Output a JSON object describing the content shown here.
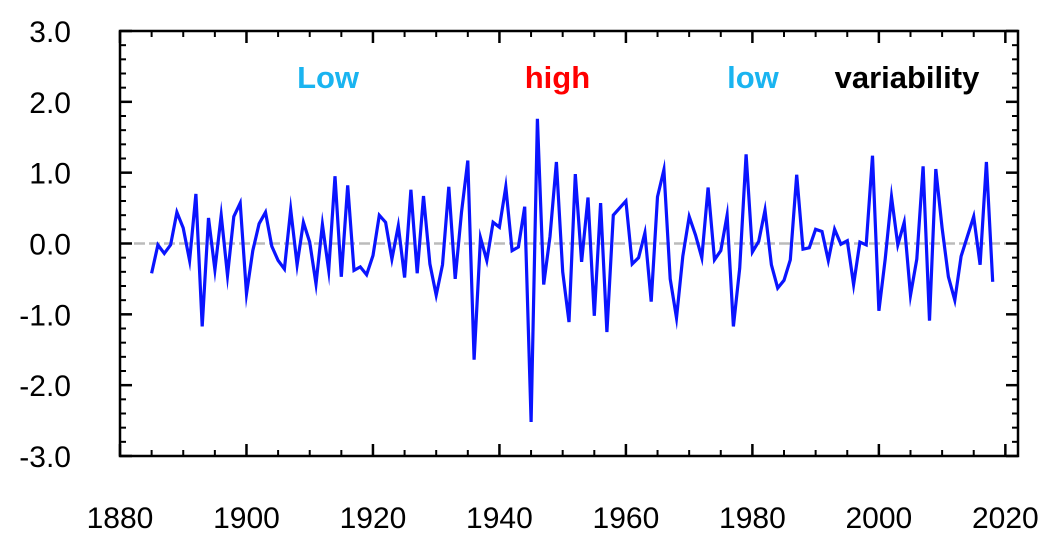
{
  "chart_data": {
    "type": "line",
    "title": "",
    "xlabel": "",
    "ylabel": "",
    "xlim": [
      1880,
      2022
    ],
    "ylim": [
      -3.0,
      3.0
    ],
    "x_ticks": [
      1880,
      1900,
      1920,
      1940,
      1960,
      1980,
      2000,
      2020
    ],
    "x_tick_labels": [
      "1880",
      "1900",
      "1920",
      "1940",
      "1960",
      "1980",
      "2000",
      "2020"
    ],
    "y_ticks": [
      3.0,
      2.0,
      1.0,
      0.0,
      -1.0,
      -2.0,
      -3.0
    ],
    "y_tick_labels": [
      "3.0",
      "2.0",
      "1.0",
      "0.0",
      "-1.0",
      "-2.0",
      "-3.0"
    ],
    "reference_line": {
      "y": 0.0,
      "style": "dashed",
      "color": "#bbbbbb"
    },
    "series": [
      {
        "color": "#0a14ff",
        "x": [
          1885,
          1886,
          1887,
          1888,
          1889,
          1890,
          1891,
          1892,
          1893,
          1894,
          1895,
          1896,
          1897,
          1898,
          1899,
          1900,
          1901,
          1902,
          1903,
          1904,
          1905,
          1906,
          1907,
          1908,
          1909,
          1910,
          1911,
          1912,
          1913,
          1914,
          1915,
          1916,
          1917,
          1918,
          1919,
          1920,
          1921,
          1922,
          1923,
          1924,
          1925,
          1926,
          1927,
          1928,
          1929,
          1930,
          1931,
          1932,
          1933,
          1934,
          1935,
          1936,
          1937,
          1938,
          1939,
          1940,
          1941,
          1942,
          1943,
          1944,
          1945,
          1946,
          1947,
          1948,
          1949,
          1950,
          1951,
          1952,
          1953,
          1954,
          1955,
          1956,
          1957,
          1958,
          1959,
          1960,
          1961,
          1962,
          1963,
          1964,
          1965,
          1966,
          1967,
          1968,
          1969,
          1970,
          1971,
          1972,
          1973,
          1974,
          1975,
          1976,
          1977,
          1978,
          1979,
          1980,
          1981,
          1982,
          1983,
          1984,
          1985,
          1986,
          1987,
          1988,
          1989,
          1990,
          1991,
          1992,
          1993,
          1994,
          1995,
          1996,
          1997,
          1998,
          1999,
          2000,
          2001,
          2002,
          2003,
          2004,
          2005,
          2006,
          2007,
          2008,
          2009,
          2010,
          2011,
          2012,
          2013,
          2014,
          2015,
          2016,
          2017,
          2018
        ],
        "y": [
          -0.42,
          -0.02,
          -0.14,
          -0.02,
          0.44,
          0.22,
          -0.24,
          0.7,
          -1.17,
          0.36,
          -0.37,
          0.4,
          -0.45,
          0.38,
          0.57,
          -0.71,
          -0.1,
          0.28,
          0.44,
          -0.04,
          -0.24,
          -0.36,
          0.48,
          -0.3,
          0.3,
          0.02,
          -0.57,
          0.27,
          -0.38,
          0.95,
          -0.47,
          0.82,
          -0.38,
          -0.33,
          -0.44,
          -0.17,
          0.4,
          0.3,
          -0.22,
          0.25,
          -0.48,
          0.76,
          -0.42,
          0.67,
          -0.29,
          -0.73,
          -0.3,
          0.8,
          -0.5,
          0.44,
          1.17,
          -1.64,
          0.08,
          -0.24,
          0.3,
          0.23,
          0.8,
          -0.1,
          -0.05,
          0.52,
          -2.52,
          1.76,
          -0.58,
          0.1,
          1.15,
          -0.4,
          -1.11,
          0.98,
          -0.26,
          0.65,
          -1.02,
          0.57,
          -1.25,
          0.4,
          0.5,
          0.6,
          -0.29,
          -0.2,
          0.15,
          -0.82,
          0.66,
          1.04,
          -0.5,
          -1.05,
          -0.18,
          0.38,
          0.12,
          -0.2,
          0.79,
          -0.23,
          -0.1,
          0.4,
          -1.17,
          -0.35,
          1.26,
          -0.12,
          0.03,
          0.47,
          -0.3,
          -0.63,
          -0.52,
          -0.23,
          0.97,
          -0.08,
          -0.06,
          0.2,
          0.17,
          -0.24,
          0.2,
          -0.01,
          0.04,
          -0.58,
          0.02,
          -0.02,
          1.24,
          -0.95,
          -0.22,
          0.66,
          -0.02,
          0.3,
          -0.73,
          -0.22,
          1.09,
          -1.09,
          1.05,
          0.22,
          -0.47,
          -0.8,
          -0.18,
          0.1,
          0.38,
          -0.3,
          1.15,
          -0.54
        ]
      }
    ],
    "annotations": [
      {
        "text": "Low",
        "color": "#1ab4f0",
        "x": 1908,
        "y": 2.35
      },
      {
        "text": "high",
        "color": "#ff0000",
        "x": 1944,
        "y": 2.35
      },
      {
        "text": "low",
        "color": "#1ab4f0",
        "x": 1976,
        "y": 2.35
      },
      {
        "text": "variability",
        "color": "#000000",
        "x": 1993,
        "y": 2.35
      }
    ]
  }
}
